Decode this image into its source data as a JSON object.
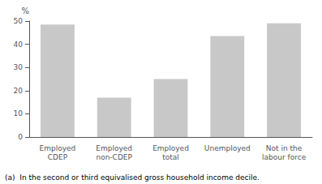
{
  "chart_data": {
    "type": "bar",
    "categories": [
      "Employed\nCDEP",
      "Employed\nnon-CDEP",
      "Employed\ntotal",
      "Unemployed",
      "Not in the\nlabour force"
    ],
    "values": [
      48.5,
      17.0,
      25.0,
      43.5,
      49.0
    ],
    "color": "#c8c8c8",
    "ylabel": "%",
    "ylim": [
      0,
      50
    ],
    "yticks": [
      0,
      10,
      20,
      30,
      40,
      50
    ],
    "grid": false,
    "annotations": [
      "(a)  In the second or third equivalised gross household income decile."
    ]
  }
}
